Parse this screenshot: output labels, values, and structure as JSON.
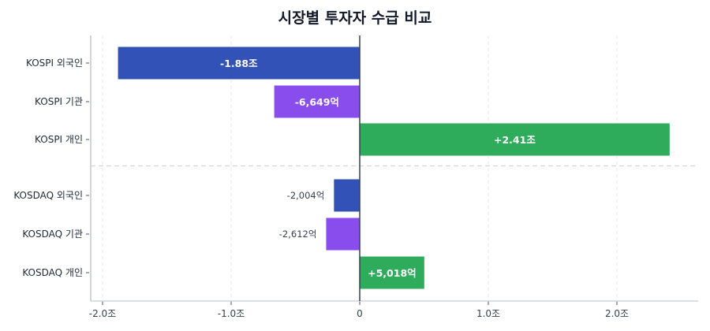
{
  "chart_data": {
    "type": "bar",
    "orientation": "horizontal",
    "title": "시장별 투자자 수급 비교",
    "xlabel": "",
    "ylabel": "",
    "xlim": [
      -2.1,
      2.6
    ],
    "x_unit": "조",
    "x_ticks": [
      -2.0,
      -1.0,
      0,
      1.0,
      2.0
    ],
    "x_tick_labels": [
      "-2.0조",
      "-1.0조",
      "0",
      "1.0조",
      "2.0조"
    ],
    "grid": true,
    "categories": [
      "KOSPI 외국인",
      "KOSPI 기관",
      "KOSPI 개인",
      "KOSDAQ 외국인",
      "KOSDAQ 기관",
      "KOSDAQ 개인"
    ],
    "values": [
      -1.88,
      -0.6649,
      2.41,
      -0.2004,
      -0.2612,
      0.5018
    ],
    "data_labels": [
      "-1.88조",
      "-6,649억",
      "+2.41조",
      "-2,004억",
      "-2,612억",
      "+5,018억"
    ],
    "colors": [
      "#3352b7",
      "#8a4ded",
      "#2eab5b",
      "#3352b7",
      "#8a4ded",
      "#2eab5b"
    ],
    "group_separator_after": 2
  }
}
